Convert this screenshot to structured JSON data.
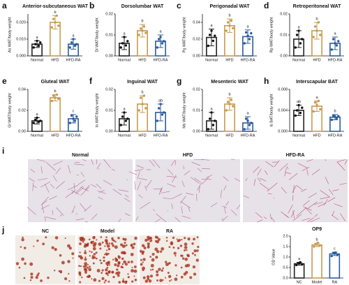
{
  "chart_data": [
    {
      "type": "bar",
      "panel": "a",
      "title": "Anterior-subcutaneous WAT",
      "ylabel": "As WAT/body weight",
      "categories": [
        "Normal",
        "HFD",
        "HFD-RA"
      ],
      "colors": [
        "#222222",
        "#c89b4e",
        "#2b5c9e"
      ],
      "values": [
        0.007,
        0.02,
        0.007
      ],
      "errors": [
        0.002,
        0.004,
        0.003
      ],
      "points": [
        [
          0.005,
          0.007,
          0.009,
          0.006,
          0.008
        ],
        [
          0.017,
          0.022,
          0.02,
          0.024,
          0.018
        ],
        [
          0.005,
          0.008,
          0.01,
          0.006,
          0.007
        ]
      ],
      "annotations": [
        "a",
        "b",
        "a"
      ],
      "ylim": [
        0,
        0.025
      ],
      "yticks": [
        {
          "value": 0,
          "label": "0.000"
        },
        {
          "value": 0.01,
          "label": "0.010"
        },
        {
          "value": 0.02,
          "label": "0.020"
        }
      ]
    },
    {
      "type": "bar",
      "panel": "b",
      "title": "Dorsolumbar WAT",
      "ylabel": "Dl WAT/body weight",
      "categories": [
        "Normal",
        "HFD",
        "HFD-RA"
      ],
      "colors": [
        "#222222",
        "#c89b4e",
        "#2b5c9e"
      ],
      "values": [
        0.006,
        0.012,
        0.007
      ],
      "errors": [
        0.003,
        0.003,
        0.003
      ],
      "points": [
        [
          0.004,
          0.006,
          0.009,
          0.005,
          0.007
        ],
        [
          0.01,
          0.013,
          0.012,
          0.014,
          0.011
        ],
        [
          0.004,
          0.008,
          0.009,
          0.006,
          0.007
        ]
      ],
      "annotations": [
        "a",
        "b",
        "a"
      ],
      "ylim": [
        0,
        0.02
      ],
      "yticks": [
        {
          "value": 0,
          "label": "0.00"
        },
        0.01,
        {
          "value": 0.02,
          "label": "0.02"
        }
      ]
    },
    {
      "type": "bar",
      "panel": "c",
      "title": "Perigonadal WAT",
      "ylabel": "Pg WAT/body weight",
      "categories": [
        "Normal",
        "HFD",
        "HFD-RA"
      ],
      "colors": [
        "#222222",
        "#c89b4e",
        "#2b5c9e"
      ],
      "values": [
        0.022,
        0.036,
        0.023
      ],
      "errors": [
        0.01,
        0.008,
        0.008
      ],
      "points": [
        [
          0.012,
          0.025,
          0.03,
          0.018,
          0.024
        ],
        [
          0.03,
          0.04,
          0.036,
          0.042,
          0.033
        ],
        [
          0.015,
          0.028,
          0.024,
          0.02,
          0.027
        ]
      ],
      "annotations": [
        "a",
        "b",
        "a"
      ],
      "ylim": [
        0,
        0.05
      ],
      "yticks": [
        {
          "value": 0,
          "label": "0.00"
        },
        0.02,
        0.04
      ]
    },
    {
      "type": "bar",
      "panel": "d",
      "title": "Retroperitoneal WAT",
      "ylabel": "Rp WAT/body weight",
      "categories": [
        "Normal",
        "HFD",
        "HFD-RA"
      ],
      "colors": [
        "#222222",
        "#c89b4e",
        "#2b5c9e"
      ],
      "values": [
        0.008,
        0.012,
        0.006
      ],
      "errors": [
        0.004,
        0.004,
        0.003
      ],
      "points": [
        [
          0.004,
          0.01,
          0.012,
          0.006,
          0.008
        ],
        [
          0.009,
          0.014,
          0.012,
          0.016,
          0.01
        ],
        [
          0.003,
          0.008,
          0.006,
          0.005,
          0.007
        ]
      ],
      "annotations": [
        "a",
        "b",
        "a"
      ],
      "ylim": [
        0,
        0.02
      ],
      "yticks": [
        {
          "value": 0,
          "label": "0.00"
        },
        0.01,
        {
          "value": 0.02,
          "label": "0.02"
        }
      ]
    },
    {
      "type": "bar",
      "panel": "e",
      "title": "Gluteal WAT",
      "ylabel": "Gl WAT/body weight",
      "categories": [
        "Normal",
        "HFD",
        "HFD-RA"
      ],
      "colors": [
        "#222222",
        "#c89b4e",
        "#2b5c9e"
      ],
      "values": [
        0.01,
        0.032,
        0.012
      ],
      "errors": [
        0.003,
        0.003,
        0.004
      ],
      "points": [
        [
          0.008,
          0.011,
          0.013,
          0.009,
          0.01
        ],
        [
          0.029,
          0.034,
          0.032,
          0.035,
          0.031
        ],
        [
          0.008,
          0.015,
          0.012,
          0.01,
          0.014
        ]
      ],
      "annotations": [
        "a",
        "b",
        "c"
      ],
      "ylim": [
        0,
        0.04
      ],
      "yticks": [
        {
          "value": 0,
          "label": "0.00"
        },
        0.02,
        0.04
      ]
    },
    {
      "type": "bar",
      "panel": "f",
      "title": "Inguinal WAT",
      "ylabel": "In WAT/body weight",
      "categories": [
        "Normal",
        "HFD",
        "HFD-RA"
      ],
      "colors": [
        "#222222",
        "#c89b4e",
        "#2b5c9e"
      ],
      "values": [
        0.006,
        0.013,
        0.009
      ],
      "errors": [
        0.003,
        0.004,
        0.004
      ],
      "points": [
        [
          0.003,
          0.007,
          0.009,
          0.005,
          0.006
        ],
        [
          0.01,
          0.016,
          0.013,
          0.017,
          0.011
        ],
        [
          0.005,
          0.011,
          0.013,
          0.008,
          0.009
        ]
      ],
      "annotations": [
        "a",
        "b",
        "ab"
      ],
      "ylim": [
        0,
        0.02
      ],
      "yticks": [
        {
          "value": 0,
          "label": "0.00"
        },
        0.01,
        {
          "value": 0.02,
          "label": "0.02"
        }
      ]
    },
    {
      "type": "bar",
      "panel": "g",
      "title": "Mesenteric WAT",
      "ylabel": "Ms WAT/body weight",
      "categories": [
        "Normal",
        "HFD",
        "HFD-RA"
      ],
      "colors": [
        "#222222",
        "#c89b4e",
        "#2b5c9e"
      ],
      "values": [
        0.005,
        0.013,
        0.004
      ],
      "errors": [
        0.004,
        0.003,
        0.003
      ],
      "points": [
        [
          0.001,
          0.006,
          0.009,
          0.003,
          0.005
        ],
        [
          0.01,
          0.014,
          0.013,
          0.015,
          0.012
        ],
        [
          0.001,
          0.006,
          0.005,
          0.003,
          0.004
        ]
      ],
      "annotations": [
        "a",
        "b",
        "a"
      ],
      "ylim": [
        0,
        0.02
      ],
      "yticks": [
        {
          "value": 0,
          "label": "0.00"
        },
        0.01,
        {
          "value": 0.02,
          "label": "0.02"
        }
      ]
    },
    {
      "type": "bar",
      "panel": "h",
      "title": "Interscapular BAT",
      "ylabel": "Is BAT/body weight",
      "categories": [
        "Normal",
        "HFD",
        "HFD-RA"
      ],
      "colors": [
        "#222222",
        "#c89b4e",
        "#2b5c9e"
      ],
      "values": [
        0.004,
        0.0048,
        0.0027
      ],
      "errors": [
        0.001,
        0.001,
        0.0005
      ],
      "points": [
        [
          0.003,
          0.004,
          0.005,
          0.0035,
          0.0045
        ],
        [
          0.0038,
          0.0055,
          0.005,
          0.0058,
          0.0042
        ],
        [
          0.0022,
          0.003,
          0.0028,
          0.0025,
          0.0029
        ]
      ],
      "annotations": [
        "ab",
        "a",
        "b"
      ],
      "ylim": [
        0,
        0.008
      ],
      "yticks": [
        {
          "value": 0,
          "label": "0.000"
        },
        0.004,
        0.008
      ]
    },
    {
      "type": "bar",
      "title": "OP9",
      "ylabel": "OD Value",
      "categories": [
        "NC",
        "Model",
        "RA"
      ],
      "colors": [
        "#222222",
        "#c89b4e",
        "#2b5c9e"
      ],
      "values": [
        0.68,
        1.58,
        1.15
      ],
      "errors": [
        0.07,
        0.08,
        0.08
      ],
      "points": [
        [
          0.62,
          0.7,
          0.75,
          0.65
        ],
        [
          1.5,
          1.62,
          1.68,
          1.55
        ],
        [
          1.05,
          1.2,
          1.22,
          1.1
        ]
      ],
      "annotations": [
        "a",
        "b",
        "c"
      ],
      "ylim": [
        0,
        2.0
      ],
      "yticks": [
        {
          "value": 0,
          "label": "0.0"
        },
        0.5,
        {
          "value": 1,
          "label": "1.0"
        },
        1.5,
        {
          "value": 2,
          "label": "2.0"
        }
      ]
    }
  ],
  "image_panels": [
    {
      "panel": "i",
      "labels": [
        "Normal",
        "HFD",
        "HFD-RA"
      ]
    },
    {
      "panel": "j",
      "labels": [
        "NC",
        "Model",
        "RA"
      ]
    }
  ]
}
